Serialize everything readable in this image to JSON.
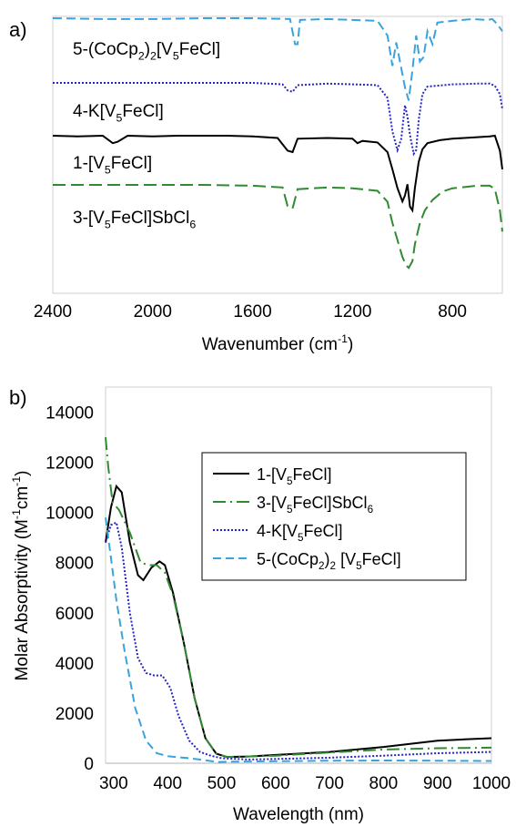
{
  "chart_data": [
    {
      "type": "line",
      "panel_label": "a)",
      "xlabel_main": "Wavenumber (cm",
      "xlabel_sup": "-1",
      "xlabel_end": ")",
      "x_reversed": true,
      "xlim": [
        2400,
        600
      ],
      "x_ticks": [
        "2400",
        "2000",
        "1600",
        "1200",
        "800"
      ],
      "x_tick_values": [
        2400,
        2000,
        1600,
        1200,
        800
      ],
      "series": [
        {
          "name": "5-(CoCp2)2[V5FeCl]",
          "label_parts": [
            [
              "5-(CoCp",
              ""
            ],
            [
              "2",
              "sub"
            ],
            [
              ")",
              ""
            ],
            [
              "2",
              "sub"
            ],
            [
              "[V",
              ""
            ],
            [
              "5",
              "sub"
            ],
            [
              "FeCl]",
              ""
            ]
          ],
          "color": "#3BA3DC",
          "dash": "10,5",
          "baseline": 1.0,
          "points": [
            [
              2400,
              1.0
            ],
            [
              2200,
              0.99
            ],
            [
              2000,
              0.99
            ],
            [
              1800,
              1.0
            ],
            [
              1600,
              1.0
            ],
            [
              1450,
              0.99
            ],
            [
              1430,
              0.7
            ],
            [
              1420,
              0.7
            ],
            [
              1410,
              0.98
            ],
            [
              1300,
              0.99
            ],
            [
              1200,
              0.98
            ],
            [
              1100,
              0.97
            ],
            [
              1060,
              0.8
            ],
            [
              1040,
              0.45
            ],
            [
              1025,
              0.72
            ],
            [
              1010,
              0.5
            ],
            [
              990,
              0.2
            ],
            [
              975,
              0.05
            ],
            [
              960,
              0.4
            ],
            [
              945,
              0.8
            ],
            [
              930,
              0.5
            ],
            [
              915,
              0.55
            ],
            [
              900,
              0.85
            ],
            [
              880,
              0.7
            ],
            [
              860,
              0.95
            ],
            [
              800,
              0.97
            ],
            [
              720,
              0.99
            ],
            [
              660,
              0.98
            ],
            [
              640,
              0.99
            ],
            [
              620,
              0.93
            ],
            [
              600,
              0.85
            ]
          ]
        },
        {
          "name": "4-K[V5FeCl]",
          "label_parts": [
            [
              "4-K[V",
              ""
            ],
            [
              "5",
              "sub"
            ],
            [
              "FeCl]",
              ""
            ]
          ],
          "color": "#2424C8",
          "dash": "2,2",
          "baseline": 1.0,
          "points": [
            [
              2400,
              1.0
            ],
            [
              2200,
              1.0
            ],
            [
              2000,
              1.0
            ],
            [
              1800,
              1.0
            ],
            [
              1600,
              1.0
            ],
            [
              1480,
              0.98
            ],
            [
              1460,
              0.9
            ],
            [
              1440,
              0.88
            ],
            [
              1420,
              0.97
            ],
            [
              1300,
              0.99
            ],
            [
              1200,
              0.98
            ],
            [
              1100,
              0.97
            ],
            [
              1060,
              0.8
            ],
            [
              1040,
              0.35
            ],
            [
              1020,
              0.1
            ],
            [
              1005,
              0.25
            ],
            [
              990,
              0.7
            ],
            [
              980,
              0.55
            ],
            [
              970,
              0.3
            ],
            [
              955,
              0.05
            ],
            [
              945,
              0.1
            ],
            [
              935,
              0.5
            ],
            [
              920,
              0.85
            ],
            [
              900,
              0.95
            ],
            [
              800,
              0.98
            ],
            [
              700,
              0.99
            ],
            [
              650,
              0.99
            ],
            [
              630,
              0.96
            ],
            [
              610,
              0.85
            ],
            [
              600,
              0.65
            ]
          ]
        },
        {
          "name": "1-[V5FeCl]",
          "label_parts": [
            [
              "1-[V",
              ""
            ],
            [
              "5",
              "sub"
            ],
            [
              "FeCl]",
              ""
            ]
          ],
          "color": "#000000",
          "dash": "none",
          "baseline": 1.0,
          "points": [
            [
              2400,
              1.0
            ],
            [
              2300,
              0.99
            ],
            [
              2200,
              1.0
            ],
            [
              2160,
              0.9
            ],
            [
              2140,
              0.92
            ],
            [
              2100,
              1.0
            ],
            [
              2000,
              0.99
            ],
            [
              1900,
              1.0
            ],
            [
              1800,
              1.0
            ],
            [
              1700,
              1.0
            ],
            [
              1600,
              0.99
            ],
            [
              1500,
              0.97
            ],
            [
              1460,
              0.8
            ],
            [
              1440,
              0.78
            ],
            [
              1420,
              0.96
            ],
            [
              1300,
              0.97
            ],
            [
              1200,
              0.96
            ],
            [
              1180,
              0.9
            ],
            [
              1160,
              0.93
            ],
            [
              1100,
              0.91
            ],
            [
              1060,
              0.78
            ],
            [
              1040,
              0.55
            ],
            [
              1020,
              0.3
            ],
            [
              1000,
              0.12
            ],
            [
              990,
              0.2
            ],
            [
              980,
              0.35
            ],
            [
              970,
              0.05
            ],
            [
              960,
              0.0
            ],
            [
              950,
              0.3
            ],
            [
              935,
              0.65
            ],
            [
              920,
              0.82
            ],
            [
              900,
              0.9
            ],
            [
              850,
              0.94
            ],
            [
              800,
              0.96
            ],
            [
              700,
              0.98
            ],
            [
              650,
              0.99
            ],
            [
              630,
              1.0
            ],
            [
              610,
              0.8
            ],
            [
              600,
              0.55
            ]
          ]
        },
        {
          "name": "3-[V5FeCl]SbCl6",
          "label_parts": [
            [
              "3-[V",
              ""
            ],
            [
              "5",
              "sub"
            ],
            [
              "FeCl]SbCl",
              ""
            ],
            [
              "6",
              "sub"
            ]
          ],
          "color": "#2E8B2E",
          "dash": "14,6",
          "baseline": 1.0,
          "points": [
            [
              2400,
              1.0
            ],
            [
              2200,
              1.0
            ],
            [
              2000,
              1.0
            ],
            [
              1800,
              1.0
            ],
            [
              1600,
              0.99
            ],
            [
              1480,
              0.97
            ],
            [
              1460,
              0.75
            ],
            [
              1440,
              0.72
            ],
            [
              1420,
              0.95
            ],
            [
              1300,
              0.97
            ],
            [
              1200,
              0.96
            ],
            [
              1100,
              0.93
            ],
            [
              1060,
              0.8
            ],
            [
              1040,
              0.55
            ],
            [
              1020,
              0.35
            ],
            [
              1000,
              0.15
            ],
            [
              985,
              0.05
            ],
            [
              975,
              0.02
            ],
            [
              960,
              0.1
            ],
            [
              950,
              0.3
            ],
            [
              930,
              0.55
            ],
            [
              910,
              0.7
            ],
            [
              880,
              0.82
            ],
            [
              840,
              0.92
            ],
            [
              800,
              0.96
            ],
            [
              700,
              0.99
            ],
            [
              650,
              0.99
            ],
            [
              630,
              0.95
            ],
            [
              610,
              0.7
            ],
            [
              600,
              0.45
            ]
          ]
        }
      ]
    },
    {
      "type": "line",
      "panel_label": "b)",
      "xlabel": "Wavelength (nm)",
      "ylabel_main": "Molar Absorptivity (M",
      "ylabel_sup1": "-1",
      "ylabel_mid": "cm",
      "ylabel_sup2": "-1",
      "ylabel_end": ")",
      "xlim": [
        285,
        1000
      ],
      "ylim": [
        0,
        15000
      ],
      "x_ticks": [
        "300",
        "400",
        "500",
        "600",
        "700",
        "800",
        "900",
        "1000"
      ],
      "x_tick_values": [
        300,
        400,
        500,
        600,
        700,
        800,
        900,
        1000
      ],
      "y_ticks": [
        "0",
        "2000",
        "4000",
        "6000",
        "8000",
        "10000",
        "12000",
        "14000"
      ],
      "y_tick_values": [
        0,
        2000,
        4000,
        6000,
        8000,
        10000,
        12000,
        14000
      ],
      "legend_position": "upper-right",
      "series": [
        {
          "name": "1-[V5FeCl]",
          "label_parts": [
            [
              "1-[V",
              ""
            ],
            [
              "5",
              "sub"
            ],
            [
              "FeCl]",
              ""
            ]
          ],
          "color": "#000000",
          "dash": "none",
          "points": [
            [
              285,
              8800
            ],
            [
              295,
              10200
            ],
            [
              305,
              11050
            ],
            [
              315,
              10800
            ],
            [
              330,
              8800
            ],
            [
              345,
              7500
            ],
            [
              355,
              7300
            ],
            [
              370,
              7800
            ],
            [
              385,
              8050
            ],
            [
              395,
              7900
            ],
            [
              410,
              6800
            ],
            [
              430,
              4800
            ],
            [
              450,
              2600
            ],
            [
              470,
              1000
            ],
            [
              490,
              380
            ],
            [
              510,
              250
            ],
            [
              550,
              270
            ],
            [
              600,
              330
            ],
            [
              700,
              450
            ],
            [
              800,
              650
            ],
            [
              880,
              850
            ],
            [
              900,
              900
            ],
            [
              950,
              950
            ],
            [
              1000,
              1000
            ]
          ]
        },
        {
          "name": "3-[V5FeCl]SbCl6",
          "label_parts": [
            [
              "3-[V",
              ""
            ],
            [
              "5",
              "sub"
            ],
            [
              "FeCl]SbCl",
              ""
            ],
            [
              "6",
              "sub"
            ]
          ],
          "color": "#2E8B2E",
          "dash": "14,5,2,5",
          "points": [
            [
              285,
              13000
            ],
            [
              290,
              11800
            ],
            [
              298,
              10400
            ],
            [
              310,
              10100
            ],
            [
              330,
              9200
            ],
            [
              350,
              8000
            ],
            [
              365,
              7900
            ],
            [
              380,
              7900
            ],
            [
              395,
              7600
            ],
            [
              410,
              6700
            ],
            [
              430,
              4800
            ],
            [
              450,
              2600
            ],
            [
              470,
              1000
            ],
            [
              490,
              380
            ],
            [
              510,
              250
            ],
            [
              600,
              300
            ],
            [
              700,
              430
            ],
            [
              800,
              550
            ],
            [
              900,
              600
            ],
            [
              1000,
              620
            ]
          ]
        },
        {
          "name": "4-K[V5FeCl]",
          "label_parts": [
            [
              "4-K[V",
              ""
            ],
            [
              "5",
              "sub"
            ],
            [
              "FeCl]",
              ""
            ]
          ],
          "color": "#2424C8",
          "dash": "2,2",
          "points": [
            [
              285,
              8800
            ],
            [
              295,
              9500
            ],
            [
              305,
              9600
            ],
            [
              315,
              8600
            ],
            [
              330,
              6000
            ],
            [
              345,
              4200
            ],
            [
              360,
              3600
            ],
            [
              375,
              3500
            ],
            [
              390,
              3500
            ],
            [
              405,
              3000
            ],
            [
              420,
              1900
            ],
            [
              440,
              900
            ],
            [
              460,
              450
            ],
            [
              480,
              300
            ],
            [
              500,
              200
            ],
            [
              550,
              150
            ],
            [
              600,
              170
            ],
            [
              700,
              220
            ],
            [
              800,
              300
            ],
            [
              900,
              400
            ],
            [
              1000,
              450
            ]
          ]
        },
        {
          "name": "5-(CoCp2)2 [V5FeCl]",
          "label_parts": [
            [
              "5-(CoCp",
              ""
            ],
            [
              "2",
              "sub"
            ],
            [
              ")",
              ""
            ],
            [
              "2",
              "sub"
            ],
            [
              " [V",
              ""
            ],
            [
              "5",
              "sub"
            ],
            [
              "FeCl]",
              ""
            ]
          ],
          "color": "#3BA3DC",
          "dash": "9,5",
          "points": [
            [
              285,
              9800
            ],
            [
              295,
              8200
            ],
            [
              305,
              6500
            ],
            [
              320,
              4500
            ],
            [
              340,
              2200
            ],
            [
              360,
              900
            ],
            [
              380,
              400
            ],
            [
              400,
              280
            ],
            [
              440,
              200
            ],
            [
              470,
              120
            ],
            [
              490,
              50
            ],
            [
              520,
              60
            ],
            [
              600,
              80
            ],
            [
              700,
              100
            ],
            [
              800,
              110
            ],
            [
              900,
              100
            ],
            [
              1000,
              90
            ]
          ]
        }
      ]
    }
  ]
}
